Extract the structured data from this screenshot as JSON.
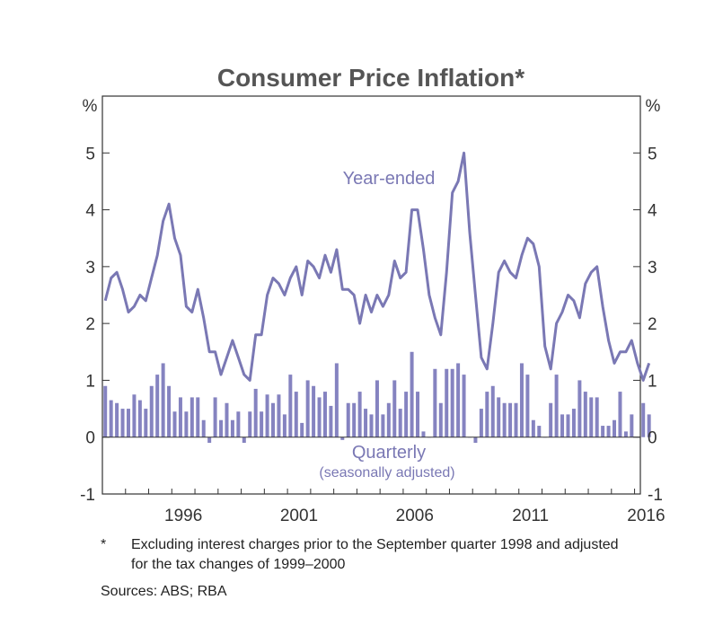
{
  "chart_data": {
    "type": "bar+line",
    "title": "Consumer Price Inflation*",
    "ylabel_left": "%",
    "ylabel_right": "%",
    "ylim": [
      -1,
      6
    ],
    "yticks": [
      -1,
      0,
      1,
      2,
      3,
      4,
      5
    ],
    "x_range": [
      1993.0,
      2016.25
    ],
    "xticks": [
      {
        "value": 1996,
        "label": "1996"
      },
      {
        "value": 2001,
        "label": "2001"
      },
      {
        "value": 2006,
        "label": "2006"
      },
      {
        "value": 2011,
        "label": "2011"
      },
      {
        "value": 2016,
        "label": "2016"
      }
    ],
    "annotations": {
      "year_ended": "Year-ended",
      "quarterly": "Quarterly",
      "quarterly_sub": "(seasonally adjusted)"
    },
    "series": [
      {
        "name": "Year-ended",
        "style": "line",
        "start": 1993.0,
        "step": 0.25,
        "values": [
          2.4,
          2.8,
          2.9,
          2.6,
          2.2,
          2.3,
          2.5,
          2.4,
          2.8,
          3.2,
          3.8,
          4.1,
          3.5,
          3.2,
          2.3,
          2.2,
          2.6,
          2.1,
          1.5,
          1.5,
          1.1,
          1.4,
          1.7,
          1.4,
          1.1,
          1.0,
          1.8,
          1.8,
          2.5,
          2.8,
          2.7,
          2.5,
          2.8,
          3.0,
          2.5,
          3.1,
          3.0,
          2.8,
          3.2,
          2.9,
          3.3,
          2.6,
          2.6,
          2.5,
          2.0,
          2.5,
          2.2,
          2.5,
          2.3,
          2.5,
          3.1,
          2.8,
          2.9,
          4.0,
          4.0,
          3.3,
          2.5,
          2.1,
          1.8,
          2.9,
          4.3,
          4.5,
          5.0,
          3.6,
          2.5,
          1.4,
          1.2,
          2.0,
          2.9,
          3.1,
          2.9,
          2.8,
          3.2,
          3.5,
          3.4,
          3.0,
          1.6,
          1.2,
          2.0,
          2.2,
          2.5,
          2.4,
          2.1,
          2.7,
          2.9,
          3.0,
          2.3,
          1.7,
          1.3,
          1.5,
          1.5,
          1.7,
          1.3,
          1.0,
          1.3
        ]
      },
      {
        "name": "Quarterly (seasonally adjusted)",
        "style": "bar",
        "start": 1993.0,
        "step": 0.25,
        "values": [
          0.9,
          0.65,
          0.6,
          0.5,
          0.5,
          0.75,
          0.65,
          0.5,
          0.9,
          1.1,
          1.3,
          0.9,
          0.45,
          0.7,
          0.45,
          0.7,
          0.7,
          0.3,
          -0.1,
          0.7,
          0.3,
          0.6,
          0.3,
          0.45,
          -0.1,
          0.45,
          0.85,
          0.45,
          0.75,
          0.6,
          0.75,
          0.4,
          1.1,
          0.8,
          0.25,
          1.0,
          0.9,
          0.7,
          0.8,
          0.55,
          1.3,
          -0.05,
          0.6,
          0.6,
          0.8,
          0.5,
          0.4,
          1.0,
          0.4,
          0.6,
          1.0,
          0.5,
          0.8,
          1.5,
          0.8,
          0.1,
          0.0,
          1.2,
          0.6,
          1.2,
          1.2,
          1.3,
          1.1,
          0.0,
          -0.1,
          0.5,
          0.8,
          0.9,
          0.7,
          0.6,
          0.6,
          0.6,
          1.3,
          1.1,
          0.3,
          0.2,
          0.0,
          0.6,
          1.1,
          0.4,
          0.4,
          0.5,
          1.0,
          0.8,
          0.7,
          0.7,
          0.2,
          0.2,
          0.3,
          0.8,
          0.1,
          0.4,
          0.0,
          0.6,
          0.4
        ]
      }
    ],
    "colors": {
      "line": "#7a78b4",
      "bar": "#8583c0",
      "axis": "#333333",
      "title": "#555555"
    }
  },
  "notes": {
    "marker": "*",
    "text": "Excluding interest charges prior to the September quarter 1998 and adjusted for the tax changes of 1999–2000",
    "sources": "Sources:  ABS; RBA"
  }
}
